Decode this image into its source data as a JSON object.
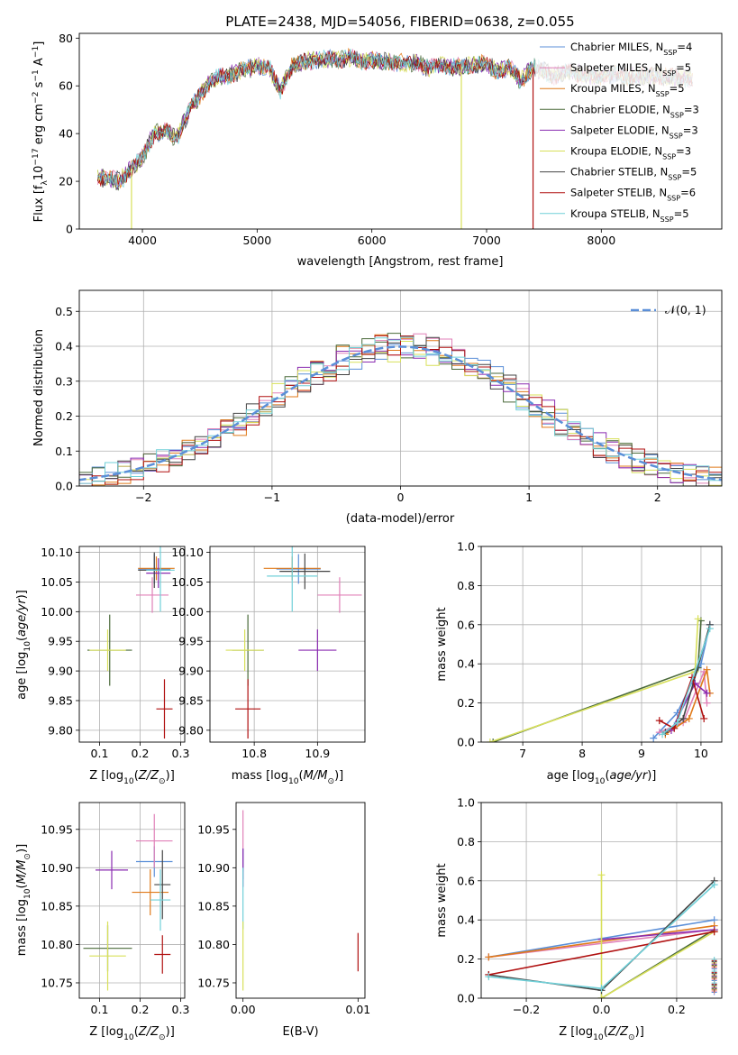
{
  "figure": {
    "title": "PLATE=2438, MJD=54056, FIBERID=0638, z=0.055"
  },
  "colors": {
    "Chabrier MILES": "#5b8fd8",
    "Salpeter MILES": "#e080b8",
    "Kroupa MILES": "#e07a1a",
    "Chabrier ELODIE": "#4a6a3a",
    "Salpeter ELODIE": "#8a2bb0",
    "Kroupa ELODIE": "#d8e05a",
    "Chabrier STELIB": "#444444",
    "Salpeter STELIB": "#b01010",
    "Kroupa STELIB": "#70d0d8"
  },
  "chart_data": [
    {
      "id": "spectrum",
      "type": "line",
      "title": "PLATE=2438, MJD=54056, FIBERID=0638, z=0.055",
      "xlabel": "wavelength [Angstrom, rest frame]",
      "ylabel": "Flux [f",
      "ylabel_parts": [
        "Flux [f",
        "λ",
        "10",
        "−17",
        " erg cm",
        "−2",
        " s",
        "−1",
        " A",
        "−1",
        "]"
      ],
      "xlim": [
        3450,
        9050
      ],
      "ylim": [
        0,
        82
      ],
      "xticks": [
        4000,
        5000,
        6000,
        7000,
        8000
      ],
      "yticks": [
        0,
        20,
        40,
        60,
        80
      ],
      "grid": false,
      "legend_position": "top-right",
      "legend": [
        {
          "name": "Chabrier MILES",
          "sub": "SSP",
          "n": "4"
        },
        {
          "name": "Salpeter MILES",
          "sub": "SSP",
          "n": "5"
        },
        {
          "name": "Kroupa MILES",
          "sub": "SSP",
          "n": "5"
        },
        {
          "name": "Chabrier ELODIE",
          "sub": "SSP",
          "n": "3"
        },
        {
          "name": "Salpeter ELODIE",
          "sub": "SSP",
          "n": "3"
        },
        {
          "name": "Kroupa ELODIE",
          "sub": "SSP",
          "n": "3"
        },
        {
          "name": "Chabrier STELIB",
          "sub": "SSP",
          "n": "5"
        },
        {
          "name": "Salpeter STELIB",
          "sub": "SSP",
          "n": "6"
        },
        {
          "name": "Kroupa STELIB",
          "sub": "SSP",
          "n": "5"
        }
      ],
      "continuum": [
        [
          3600,
          22
        ],
        [
          3800,
          20
        ],
        [
          3900,
          25
        ],
        [
          4000,
          30
        ],
        [
          4100,
          40
        ],
        [
          4200,
          41
        ],
        [
          4300,
          38
        ],
        [
          4400,
          49
        ],
        [
          4500,
          56
        ],
        [
          4600,
          62
        ],
        [
          4700,
          64
        ],
        [
          4800,
          65
        ],
        [
          4900,
          67
        ],
        [
          5000,
          68
        ],
        [
          5100,
          68
        ],
        [
          5200,
          58
        ],
        [
          5300,
          68
        ],
        [
          5400,
          70
        ],
        [
          5500,
          71
        ],
        [
          5600,
          71
        ],
        [
          5700,
          71
        ],
        [
          5800,
          72
        ],
        [
          5900,
          70
        ],
        [
          6000,
          71
        ],
        [
          6100,
          70
        ],
        [
          6200,
          70
        ],
        [
          6300,
          69
        ],
        [
          6400,
          70
        ],
        [
          6500,
          67
        ],
        [
          6600,
          69
        ],
        [
          6700,
          68
        ],
        [
          6800,
          68
        ],
        [
          6900,
          69
        ],
        [
          7000,
          69
        ],
        [
          7100,
          66
        ],
        [
          7200,
          68
        ],
        [
          7300,
          62
        ],
        [
          7400,
          68
        ],
        [
          7500,
          66
        ],
        [
          7600,
          64
        ],
        [
          7700,
          66
        ],
        [
          7800,
          65
        ],
        [
          7900,
          64
        ],
        [
          8000,
          64
        ],
        [
          8100,
          65
        ],
        [
          8200,
          64
        ],
        [
          8300,
          64
        ],
        [
          8400,
          64
        ],
        [
          8500,
          64
        ],
        [
          8600,
          64
        ],
        [
          8700,
          63
        ],
        [
          8800,
          63
        ]
      ],
      "spikes": [
        {
          "x": 3905,
          "series": "Kroupa ELODIE"
        },
        {
          "x": 6780,
          "series": "Kroupa ELODIE"
        },
        {
          "x": 7405,
          "series": "Salpeter STELIB"
        }
      ]
    },
    {
      "id": "residuals",
      "type": "histogram",
      "xlabel": "(data-model)/error",
      "ylabel": "Normed distribution",
      "xlim": [
        -2.5,
        2.5
      ],
      "ylim": [
        0,
        0.56
      ],
      "xticks": [
        -2,
        -1,
        0,
        1,
        2
      ],
      "yticks": [
        0.0,
        0.1,
        0.2,
        0.3,
        0.4,
        0.5
      ],
      "grid": true,
      "legend_position": "top-right",
      "legend": [
        {
          "name": "𝒩(0, 1)",
          "style": "dashed",
          "color": "#5b8fd8"
        }
      ],
      "bin_width": 0.1
    },
    {
      "id": "age-vs-Z",
      "type": "scatter",
      "xlabel": "Z [log10(Z/Z⊙)]",
      "ylabel": "age  [log10(age/yr)]",
      "xlim": [
        0.05,
        0.31
      ],
      "ylim": [
        9.78,
        10.11
      ],
      "xticks": [
        0.1,
        0.2,
        0.3
      ],
      "yticks": [
        9.8,
        9.85,
        9.9,
        9.95,
        10.0,
        10.05,
        10.1
      ],
      "grid": true,
      "points": [
        {
          "series": "Chabrier MILES",
          "x": 0.235,
          "y": 10.072,
          "ex": 0.04,
          "ey": 0.025
        },
        {
          "series": "Salpeter MILES",
          "x": 0.23,
          "y": 10.028,
          "ex": 0.04,
          "ey": 0.03
        },
        {
          "series": "Kroupa MILES",
          "x": 0.24,
          "y": 10.073,
          "ex": 0.045,
          "ey": 0.02
        },
        {
          "series": "Chabrier ELODIE",
          "x": 0.125,
          "y": 9.935,
          "ex": 0.055,
          "ey": 0.06
        },
        {
          "series": "Salpeter ELODIE",
          "x": 0.245,
          "y": 10.065,
          "ex": 0.03,
          "ey": 0.025
        },
        {
          "series": "Kroupa ELODIE",
          "x": 0.12,
          "y": 9.935,
          "ex": 0.045,
          "ey": 0.035
        },
        {
          "series": "Chabrier STELIB",
          "x": 0.235,
          "y": 10.07,
          "ex": 0.04,
          "ey": 0.03
        },
        {
          "series": "Salpeter STELIB",
          "x": 0.26,
          "y": 9.836,
          "ex": 0.02,
          "ey": 0.05
        },
        {
          "series": "Kroupa STELIB",
          "x": 0.25,
          "y": 10.07,
          "ex": 0.035,
          "ey": 0.07
        }
      ]
    },
    {
      "id": "age-vs-mass",
      "type": "scatter",
      "xlabel": "mass [log10(M/M⊙)]",
      "ylabel": "",
      "xlim": [
        10.73,
        10.975
      ],
      "ylim": [
        9.78,
        10.11
      ],
      "xticks": [
        10.8,
        10.9
      ],
      "yticks": [
        9.8,
        9.85,
        9.9,
        9.95,
        10.0,
        10.05,
        10.1
      ],
      "grid": true,
      "points": [
        {
          "series": "Chabrier MILES",
          "x": 10.87,
          "y": 10.072,
          "ex": 0.035,
          "ey": 0.025
        },
        {
          "series": "Salpeter MILES",
          "x": 10.935,
          "y": 10.028,
          "ex": 0.035,
          "ey": 0.03
        },
        {
          "series": "Kroupa MILES",
          "x": 10.86,
          "y": 10.073,
          "ex": 0.045,
          "ey": 0.02
        },
        {
          "series": "Chabrier ELODIE",
          "x": 10.79,
          "y": 9.935,
          "ex": 0.025,
          "ey": 0.06
        },
        {
          "series": "Salpeter ELODIE",
          "x": 10.9,
          "y": 9.935,
          "ex": 0.03,
          "ey": 0.035
        },
        {
          "series": "Kroupa ELODIE",
          "x": 10.785,
          "y": 9.935,
          "ex": 0.03,
          "ey": 0.035
        },
        {
          "series": "Chabrier STELIB",
          "x": 10.88,
          "y": 10.068,
          "ex": 0.04,
          "ey": 0.03
        },
        {
          "series": "Salpeter STELIB",
          "x": 10.79,
          "y": 9.836,
          "ex": 0.02,
          "ey": 0.05
        },
        {
          "series": "Kroupa STELIB",
          "x": 10.86,
          "y": 10.06,
          "ex": 0.04,
          "ey": 0.06
        }
      ]
    },
    {
      "id": "weight-vs-age",
      "type": "line",
      "xlabel": "age  [log10(age/yr)]",
      "ylabel": "mass weight",
      "xlim": [
        6.3,
        10.35
      ],
      "ylim": [
        0,
        1.0
      ],
      "xticks": [
        7,
        8,
        9,
        10
      ],
      "yticks": [
        0.0,
        0.2,
        0.4,
        0.6,
        0.8,
        1.0
      ],
      "grid": true,
      "series": [
        {
          "name": "Chabrier MILES",
          "points": [
            [
              9.2,
              0.02
            ],
            [
              9.6,
              0.15
            ],
            [
              10.0,
              0.4
            ],
            [
              10.15,
              0.6
            ]
          ]
        },
        {
          "name": "Salpeter MILES",
          "points": [
            [
              9.3,
              0.05
            ],
            [
              9.7,
              0.1
            ],
            [
              10.05,
              0.36
            ],
            [
              10.1,
              0.2
            ]
          ]
        },
        {
          "name": "Kroupa MILES",
          "points": [
            [
              9.4,
              0.04
            ],
            [
              9.8,
              0.12
            ],
            [
              10.1,
              0.37
            ],
            [
              10.15,
              0.25
            ]
          ]
        },
        {
          "name": "Chabrier ELODIE",
          "points": [
            [
              6.5,
              0.0
            ],
            [
              9.95,
              0.38
            ],
            [
              10.0,
              0.62
            ]
          ]
        },
        {
          "name": "Salpeter ELODIE",
          "points": [
            [
              9.5,
              0.06
            ],
            [
              9.9,
              0.3
            ],
            [
              10.1,
              0.25
            ]
          ]
        },
        {
          "name": "Kroupa ELODIE",
          "points": [
            [
              6.45,
              0.0
            ],
            [
              9.9,
              0.36
            ],
            [
              9.95,
              0.63
            ]
          ]
        },
        {
          "name": "Chabrier STELIB",
          "points": [
            [
              9.4,
              0.05
            ],
            [
              9.7,
              0.12
            ],
            [
              10.15,
              0.6
            ]
          ]
        },
        {
          "name": "Salpeter STELIB",
          "points": [
            [
              9.3,
              0.11
            ],
            [
              9.55,
              0.07
            ],
            [
              9.85,
              0.33
            ],
            [
              10.05,
              0.12
            ]
          ]
        },
        {
          "name": "Kroupa STELIB",
          "points": [
            [
              9.35,
              0.04
            ],
            [
              9.6,
              0.1
            ],
            [
              10.15,
              0.58
            ]
          ]
        }
      ]
    },
    {
      "id": "mass-vs-Z",
      "type": "scatter",
      "xlabel": "Z [log10(Z/Z⊙)]",
      "ylabel": "mass [log10(M/M⊙)]",
      "xlim": [
        0.05,
        0.31
      ],
      "ylim": [
        10.73,
        10.985
      ],
      "xticks": [
        0.1,
        0.2,
        0.3
      ],
      "yticks": [
        10.75,
        10.8,
        10.85,
        10.9,
        10.95
      ],
      "grid": true,
      "points": [
        {
          "series": "Chabrier MILES",
          "x": 0.235,
          "y": 10.908,
          "ex": 0.045,
          "ey": 0.02
        },
        {
          "series": "Salpeter MILES",
          "x": 0.235,
          "y": 10.935,
          "ex": 0.045,
          "ey": 0.035
        },
        {
          "series": "Kroupa MILES",
          "x": 0.225,
          "y": 10.868,
          "ex": 0.045,
          "ey": 0.03
        },
        {
          "series": "Chabrier ELODIE",
          "x": 0.12,
          "y": 10.795,
          "ex": 0.06,
          "ey": 0.03
        },
        {
          "series": "Salpeter ELODIE",
          "x": 0.13,
          "y": 10.897,
          "ex": 0.04,
          "ey": 0.025
        },
        {
          "series": "Kroupa ELODIE",
          "x": 0.12,
          "y": 10.785,
          "ex": 0.045,
          "ey": 0.045
        },
        {
          "series": "Chabrier STELIB",
          "x": 0.255,
          "y": 10.878,
          "ex": 0.02,
          "ey": 0.045
        },
        {
          "series": "Salpeter STELIB",
          "x": 0.255,
          "y": 10.787,
          "ex": 0.02,
          "ey": 0.025
        },
        {
          "series": "Kroupa STELIB",
          "x": 0.25,
          "y": 10.858,
          "ex": 0.025,
          "ey": 0.04
        }
      ]
    },
    {
      "id": "mass-vs-EBV",
      "type": "scatter",
      "xlabel": "E(B-V)",
      "ylabel": "",
      "xlim": [
        -0.0006,
        0.0106
      ],
      "ylim": [
        10.73,
        10.985
      ],
      "xticks": [
        0.0,
        0.01
      ],
      "yticks": [
        10.75,
        10.8,
        10.85,
        10.9,
        10.95
      ],
      "grid": false,
      "points": [
        {
          "series": "Salpeter MILES",
          "x": 0.0,
          "y": 10.935,
          "ex": 0.0,
          "ey": 0.04
        },
        {
          "series": "Chabrier MILES",
          "x": 0.0,
          "y": 10.905,
          "ex": 0.0,
          "ey": 0.02
        },
        {
          "series": "Salpeter ELODIE",
          "x": 0.0,
          "y": 10.9,
          "ex": 0.0,
          "ey": 0.025
        },
        {
          "series": "Kroupa STELIB",
          "x": 0.0,
          "y": 10.86,
          "ex": 0.0,
          "ey": 0.04
        },
        {
          "series": "Kroupa ELODIE",
          "x": 0.0,
          "y": 10.785,
          "ex": 0.0,
          "ey": 0.045
        },
        {
          "series": "Salpeter STELIB",
          "x": 0.01,
          "y": 10.79,
          "ex": 0.0,
          "ey": 0.025
        }
      ]
    },
    {
      "id": "weight-vs-Z",
      "type": "line",
      "xlabel": "Z [log10(Z/Z⊙)]",
      "ylabel": "mass weight",
      "xlim": [
        -0.32,
        0.32
      ],
      "ylim": [
        0,
        1.0
      ],
      "xticks": [
        -0.2,
        0.0,
        0.2
      ],
      "yticks": [
        0.0,
        0.2,
        0.4,
        0.6,
        0.8,
        1.0
      ],
      "grid": true,
      "series": [
        {
          "name": "Chabrier MILES",
          "points": [
            [
              -0.3,
              0.21
            ],
            [
              0.3,
              0.4
            ]
          ]
        },
        {
          "name": "Salpeter MILES",
          "points": [
            [
              -0.3,
              0.21
            ],
            [
              0.3,
              0.35
            ]
          ]
        },
        {
          "name": "Kroupa MILES",
          "points": [
            [
              -0.3,
              0.21
            ],
            [
              0.3,
              0.37
            ]
          ]
        },
        {
          "name": "Chabrier ELODIE",
          "points": [
            [
              0.0,
              0.0
            ],
            [
              0.3,
              0.35
            ]
          ]
        },
        {
          "name": "Salpeter ELODIE",
          "points": [
            [
              0.0,
              0.3
            ],
            [
              0.3,
              0.35
            ]
          ]
        },
        {
          "name": "Kroupa ELODIE",
          "points": [
            [
              0.0,
              0.63
            ],
            [
              0.0,
              0.0
            ],
            [
              0.3,
              0.34
            ]
          ]
        },
        {
          "name": "Chabrier STELIB",
          "points": [
            [
              -0.3,
              0.12
            ],
            [
              0.0,
              0.04
            ],
            [
              0.3,
              0.6
            ]
          ]
        },
        {
          "name": "Salpeter STELIB",
          "points": [
            [
              -0.3,
              0.12
            ],
            [
              0.3,
              0.34
            ]
          ]
        },
        {
          "name": "Kroupa STELIB",
          "points": [
            [
              -0.3,
              0.11
            ],
            [
              0.0,
              0.05
            ],
            [
              0.3,
              0.58
            ]
          ]
        }
      ],
      "stacked_markers_at_x": 0.3
    }
  ]
}
